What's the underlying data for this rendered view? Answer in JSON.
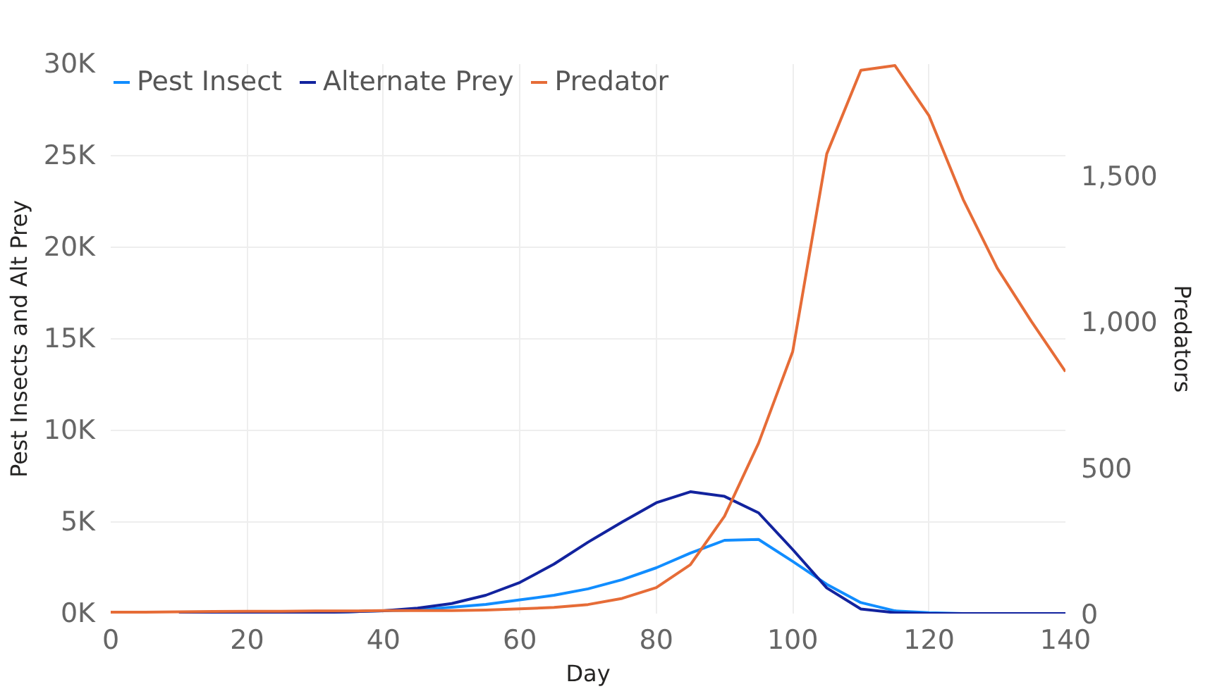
{
  "chart_data": {
    "type": "line",
    "xlabel": "Day",
    "ylabel": "Pest Insects and Alt Prey",
    "y2label": "Predators",
    "x": [
      0,
      5,
      10,
      15,
      20,
      25,
      30,
      35,
      40,
      45,
      50,
      55,
      60,
      65,
      70,
      75,
      80,
      85,
      90,
      95,
      100,
      105,
      110,
      115,
      120,
      125,
      130,
      135,
      140
    ],
    "series": [
      {
        "name": "Pest Insect",
        "color": "#118dff",
        "x": [
          30,
          35,
          40,
          45,
          50,
          55,
          60,
          65,
          70,
          75,
          80,
          85,
          90,
          95,
          100,
          105,
          110,
          115,
          120,
          125
        ],
        "values": [
          50,
          100,
          150,
          200,
          350,
          500,
          750,
          1000,
          1350,
          1850,
          2500,
          3300,
          4000,
          4050,
          2850,
          1600,
          600,
          150,
          50,
          0
        ]
      },
      {
        "name": "Alternate Prey",
        "color": "#12239e",
        "x": [
          10,
          15,
          20,
          25,
          30,
          35,
          40,
          45,
          50,
          55,
          60,
          65,
          70,
          75,
          80,
          85,
          90,
          95,
          100,
          105,
          110,
          115,
          120,
          125,
          130,
          135,
          140
        ],
        "values": [
          0,
          0,
          50,
          50,
          50,
          100,
          150,
          300,
          550,
          1000,
          1700,
          2700,
          3900,
          5000,
          6050,
          6650,
          6400,
          5500,
          3500,
          1400,
          250,
          50,
          0,
          0,
          0,
          0,
          0
        ]
      },
      {
        "name": "Predator",
        "color": "#e66c37",
        "axis": "y2",
        "values": [
          5,
          5,
          6,
          7,
          8,
          8,
          9,
          9,
          10,
          10,
          10,
          12,
          16,
          21,
          31,
          52,
          89,
          167,
          333,
          583,
          896,
          1573,
          1859,
          1875,
          1703,
          1417,
          1182,
          1000,
          828
        ]
      }
    ],
    "xlim": [
      0,
      140
    ],
    "xticks": [
      0,
      20,
      40,
      60,
      80,
      100,
      120,
      140
    ],
    "ylim": [
      0,
      30000
    ],
    "yticks": [
      {
        "value": 0,
        "label": "0K"
      },
      {
        "value": 5000,
        "label": "5K"
      },
      {
        "value": 10000,
        "label": "10K"
      },
      {
        "value": 15000,
        "label": "15K"
      },
      {
        "value": 20000,
        "label": "20K"
      },
      {
        "value": 25000,
        "label": "25K"
      },
      {
        "value": 30000,
        "label": "30K"
      }
    ],
    "y2lim": [
      0,
      1880
    ],
    "y2ticks": [
      0,
      {
        "value": 500,
        "label": "500"
      },
      {
        "value": 1000,
        "label": "1,000"
      },
      {
        "value": 1500,
        "label": "1,500"
      }
    ],
    "grid": true,
    "legend": "top left"
  }
}
